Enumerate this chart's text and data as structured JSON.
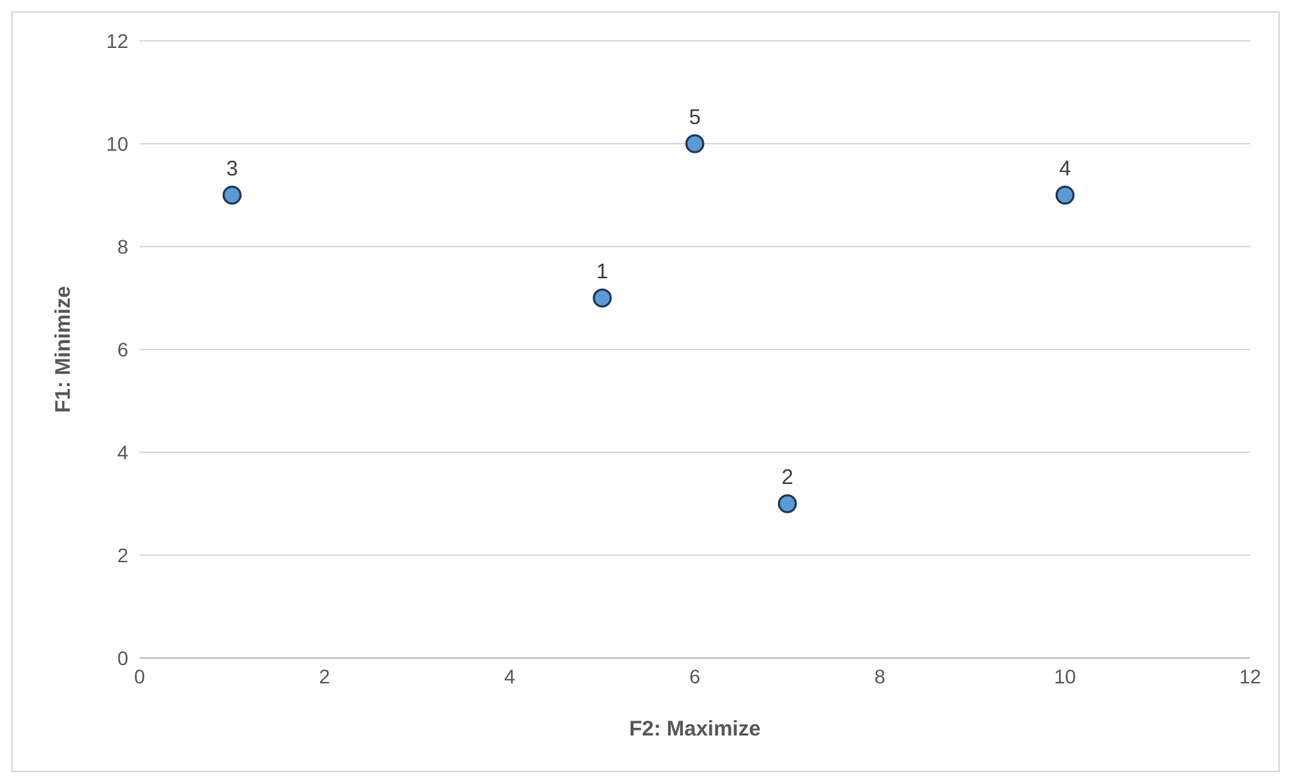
{
  "chart_data": {
    "type": "scatter",
    "xlabel": "F2: Maximize",
    "ylabel": "F1: Minimize",
    "x": [
      5,
      7,
      1,
      10,
      6
    ],
    "series": [
      {
        "color": "#5b9bd5",
        "values": [
          7,
          3,
          9,
          9,
          10
        ]
      }
    ],
    "annotations": [
      {
        "text": "1",
        "x": 5,
        "y": 7
      },
      {
        "text": "2",
        "x": 7,
        "y": 3
      },
      {
        "text": "3",
        "x": 1,
        "y": 9
      },
      {
        "text": "4",
        "x": 10,
        "y": 9
      },
      {
        "text": "5",
        "x": 6,
        "y": 10
      }
    ],
    "xlim": [
      0,
      12
    ],
    "xticks": [
      0,
      2,
      4,
      6,
      8,
      10,
      12
    ],
    "ylim": [
      0,
      12
    ],
    "yticks": [
      0,
      2,
      4,
      6,
      8,
      10,
      12
    ],
    "grid": "y",
    "marker": "circle"
  }
}
